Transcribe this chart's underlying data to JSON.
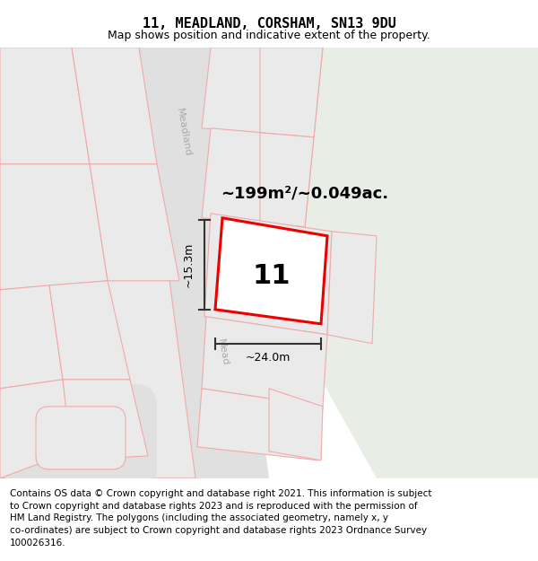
{
  "title_line1": "11, MEADLAND, CORSHAM, SN13 9DU",
  "title_line2": "Map shows position and indicative extent of the property.",
  "area_label": "~199m²/~0.049ac.",
  "width_label": "~24.0m",
  "height_label": "~15.3m",
  "property_number": "11",
  "street_label_top": "Meadland",
  "street_label_bot": "Mead",
  "copyright_lines": [
    "Contains OS data © Crown copyright and database right 2021. This information is subject",
    "to Crown copyright and database rights 2023 and is reproduced with the permission of",
    "HM Land Registry. The polygons (including the associated geometry, namely x, y",
    "co-ordinates) are subject to Crown copyright and database rights 2023 Ordnance Survey",
    "100026316."
  ],
  "map_bg": "#f2f2f2",
  "green_color": "#e8ede6",
  "road_color": "#e0e0e0",
  "plot_bg": "#eaeaea",
  "plot_edge": "#f0aaaa",
  "prop_edge": "#ee0000",
  "prop_fill": "#ffffff",
  "dim_color": "#333333",
  "title_fontsize": 11,
  "subtitle_fontsize": 9,
  "area_fontsize": 13,
  "num_fontsize": 22,
  "dim_fontsize": 9,
  "copyright_fontsize": 7.5,
  "street_fontsize": 8
}
